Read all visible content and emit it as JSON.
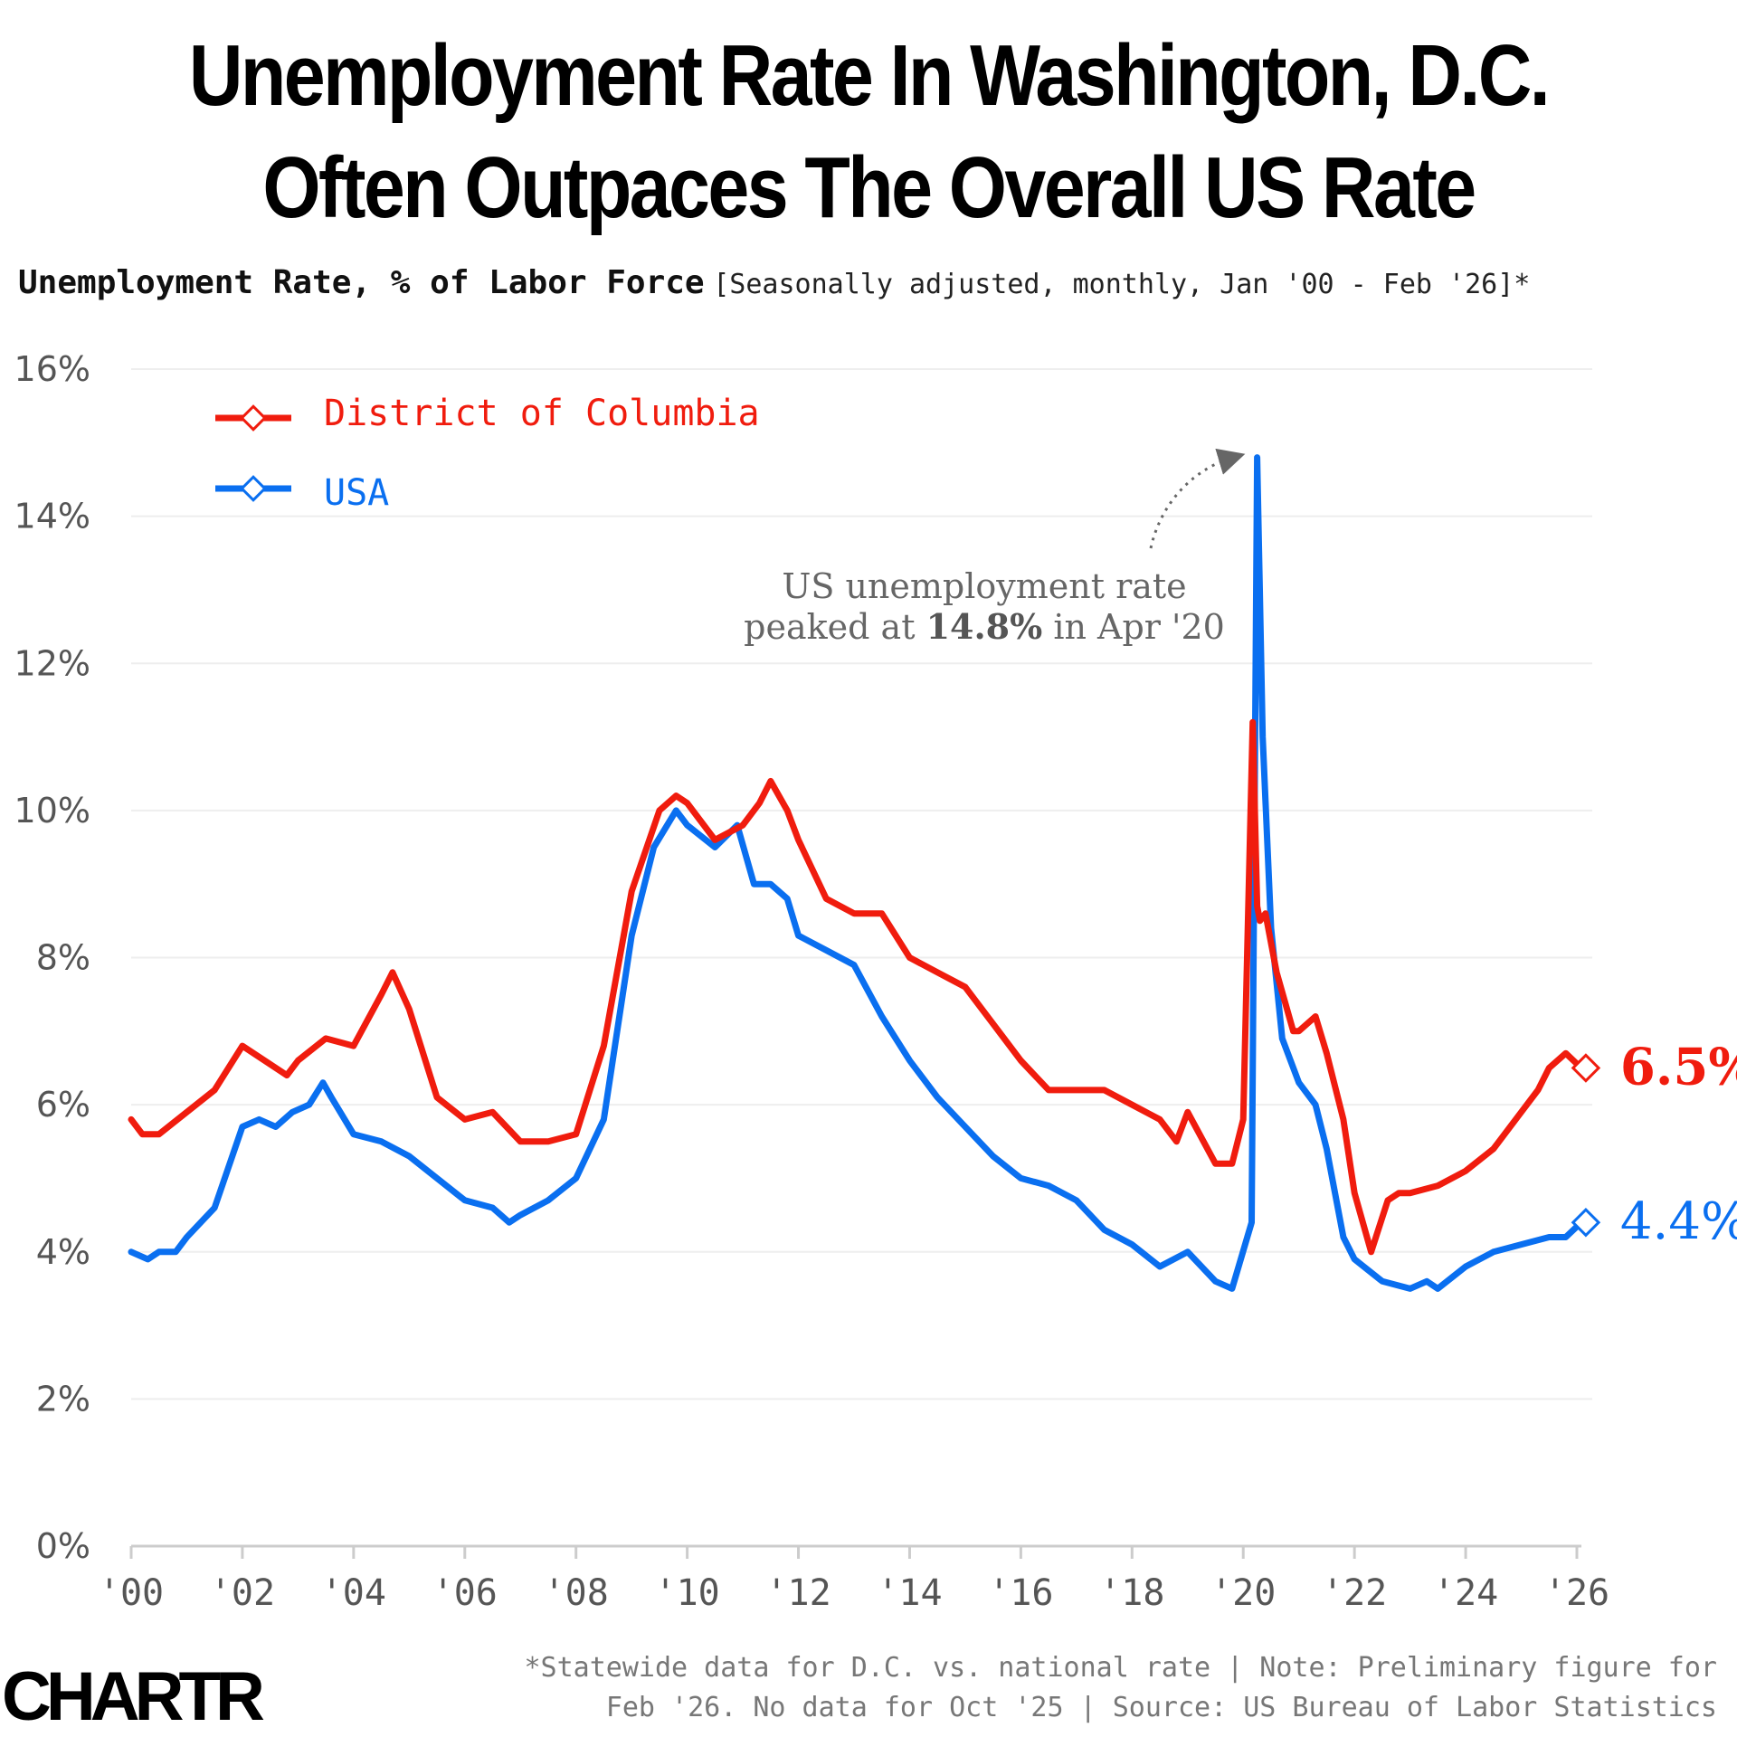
{
  "header": {
    "title_line1": "Unemployment Rate In Washington, D.C.",
    "title_line2": "Often Outpaces The Overall US Rate",
    "subtitle_main": "Unemployment Rate, % of Labor Force",
    "subtitle_note": "[Seasonally adjusted, monthly, Jan '00 - Feb '26]*"
  },
  "colors": {
    "dc": "#f01c0e",
    "usa": "#0a6ff0",
    "grid": "#eeeeee",
    "axis": "#cccccc",
    "tick_text": "#555555",
    "annotation": "#666666"
  },
  "chart_data": {
    "type": "line",
    "title": "Unemployment Rate In Washington, D.C. Often Outpaces The Overall US Rate",
    "ylabel": "Unemployment Rate, % of Labor Force",
    "xlabel": "",
    "ylim": [
      0,
      16
    ],
    "xlim": [
      2000,
      2026.1
    ],
    "y_ticks": [
      0,
      2,
      4,
      6,
      8,
      10,
      12,
      14,
      16
    ],
    "y_tick_labels": [
      "0%",
      "2%",
      "4%",
      "6%",
      "8%",
      "10%",
      "12%",
      "14%",
      "16%"
    ],
    "x_ticks": [
      2000,
      2002,
      2004,
      2006,
      2008,
      2010,
      2012,
      2014,
      2016,
      2018,
      2020,
      2022,
      2024,
      2026
    ],
    "x_tick_labels": [
      "'00",
      "'02",
      "'04",
      "'06",
      "'08",
      "'10",
      "'12",
      "'14",
      "'16",
      "'18",
      "'20",
      "'22",
      "'24",
      "'26"
    ],
    "legend": {
      "placement": "top-left",
      "entries": [
        "District of Columbia",
        "USA"
      ]
    },
    "series": [
      {
        "name": "District of Columbia",
        "x": [
          2000.0,
          2000.2,
          2000.5,
          2001.0,
          2001.5,
          2002.0,
          2002.4,
          2002.8,
          2003.0,
          2003.5,
          2004.0,
          2004.5,
          2004.7,
          2005.0,
          2005.5,
          2006.0,
          2006.5,
          2007.0,
          2007.5,
          2008.0,
          2008.5,
          2009.0,
          2009.5,
          2009.8,
          2010.0,
          2010.5,
          2011.0,
          2011.3,
          2011.5,
          2011.8,
          2012.0,
          2012.5,
          2013.0,
          2013.5,
          2014.0,
          2014.5,
          2015.0,
          2015.5,
          2016.0,
          2016.5,
          2017.0,
          2017.5,
          2018.0,
          2018.5,
          2018.8,
          2019.0,
          2019.5,
          2019.8,
          2020.0,
          2020.17,
          2020.25,
          2020.3,
          2020.4,
          2020.6,
          2020.9,
          2021.0,
          2021.3,
          2021.5,
          2021.8,
          2022.0,
          2022.3,
          2022.6,
          2022.8,
          2023.0,
          2023.5,
          2024.0,
          2024.5,
          2025.0,
          2025.3,
          2025.5,
          2025.8,
          2026.08
        ],
        "values": [
          5.8,
          5.6,
          5.6,
          5.9,
          6.2,
          6.8,
          6.6,
          6.4,
          6.6,
          6.9,
          6.8,
          7.5,
          7.8,
          7.3,
          6.1,
          5.8,
          5.9,
          5.5,
          5.5,
          5.6,
          6.8,
          8.9,
          10.0,
          10.2,
          10.1,
          9.6,
          9.8,
          10.1,
          10.4,
          10.0,
          9.6,
          8.8,
          8.6,
          8.6,
          8.0,
          7.8,
          7.6,
          7.1,
          6.6,
          6.2,
          6.2,
          6.2,
          6.0,
          5.8,
          5.5,
          5.9,
          5.2,
          5.2,
          5.8,
          11.2,
          8.7,
          8.5,
          8.6,
          7.8,
          7.0,
          7.0,
          7.2,
          6.7,
          5.8,
          4.8,
          4.0,
          4.7,
          4.8,
          4.8,
          4.9,
          5.1,
          5.4,
          5.9,
          6.2,
          6.5,
          6.7,
          6.5
        ]
      },
      {
        "name": "USA",
        "x": [
          2000.0,
          2000.3,
          2000.5,
          2000.8,
          2001.0,
          2001.5,
          2002.0,
          2002.3,
          2002.6,
          2002.9,
          2003.2,
          2003.45,
          2003.6,
          2004.0,
          2004.5,
          2005.0,
          2005.5,
          2006.0,
          2006.5,
          2006.8,
          2007.0,
          2007.5,
          2008.0,
          2008.5,
          2009.0,
          2009.4,
          2009.8,
          2010.0,
          2010.5,
          2010.9,
          2011.2,
          2011.5,
          2011.8,
          2012.0,
          2012.5,
          2013.0,
          2013.5,
          2014.0,
          2014.5,
          2015.0,
          2015.5,
          2016.0,
          2016.5,
          2017.0,
          2017.5,
          2018.0,
          2018.5,
          2019.0,
          2019.5,
          2019.8,
          2020.15,
          2020.25,
          2020.35,
          2020.5,
          2020.7,
          2021.0,
          2021.3,
          2021.5,
          2021.8,
          2022.0,
          2022.5,
          2023.0,
          2023.3,
          2023.5,
          2024.0,
          2024.5,
          2025.0,
          2025.5,
          2025.8,
          2026.08
        ],
        "values": [
          4.0,
          3.9,
          4.0,
          4.0,
          4.2,
          4.6,
          5.7,
          5.8,
          5.7,
          5.9,
          6.0,
          6.3,
          6.1,
          5.6,
          5.5,
          5.3,
          5.0,
          4.7,
          4.6,
          4.4,
          4.5,
          4.7,
          5.0,
          5.8,
          8.3,
          9.5,
          10.0,
          9.8,
          9.5,
          9.8,
          9.0,
          9.0,
          8.8,
          8.3,
          8.1,
          7.9,
          7.2,
          6.6,
          6.1,
          5.7,
          5.3,
          5.0,
          4.9,
          4.7,
          4.3,
          4.1,
          3.8,
          4.0,
          3.6,
          3.5,
          4.4,
          14.8,
          11.0,
          8.4,
          6.9,
          6.3,
          6.0,
          5.4,
          4.2,
          3.9,
          3.6,
          3.5,
          3.6,
          3.5,
          3.8,
          4.0,
          4.1,
          4.2,
          4.2,
          4.4
        ]
      }
    ],
    "end_labels": {
      "dc": "6.5%",
      "usa": "4.4%"
    },
    "annotation": {
      "line1": "US unemployment rate",
      "line2_prefix": "peaked at ",
      "line2_bold": "14.8%",
      "line2_suffix": " in Apr '20",
      "points_to": {
        "x": 2020.25,
        "y": 14.8
      }
    }
  },
  "footer": {
    "note_line1": "*Statewide data for D.C. vs. national rate | Note: Preliminary figure for",
    "note_line2": "Feb '26. No data for Oct '25 | Source: US Bureau of Labor Statistics",
    "logo": "CHARTR"
  }
}
